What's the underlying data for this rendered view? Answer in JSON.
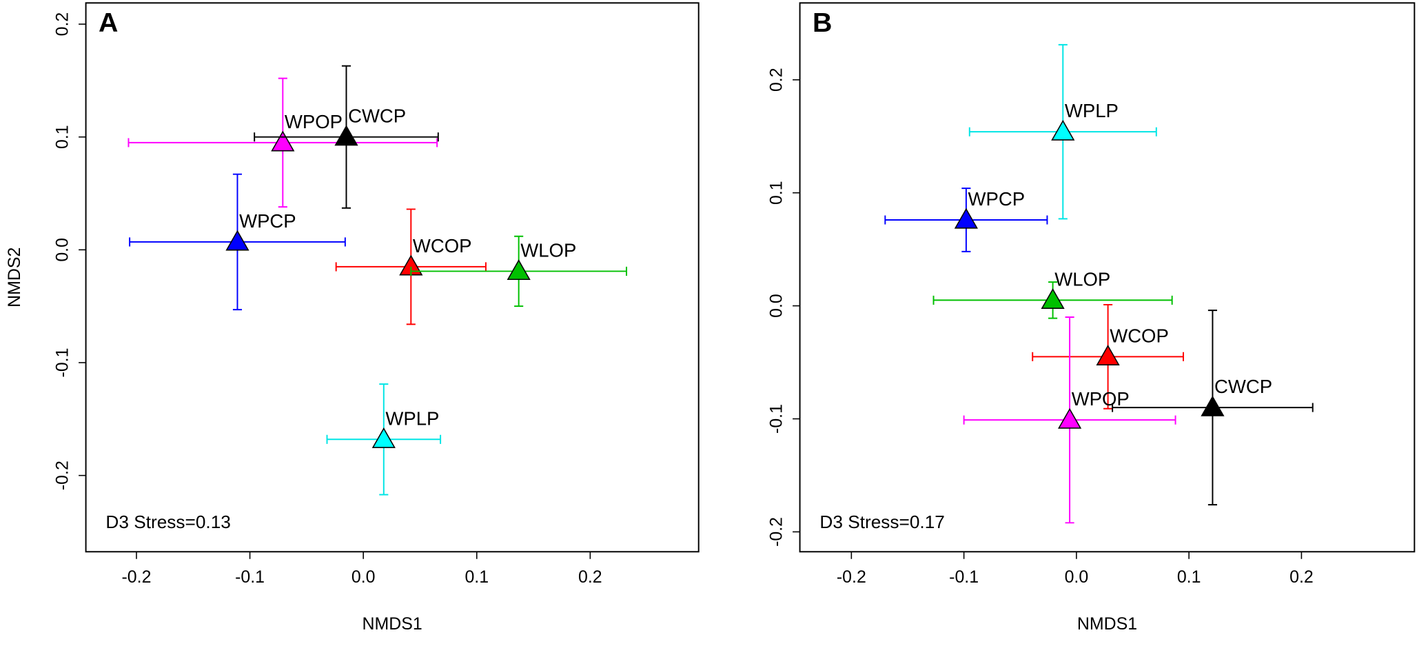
{
  "chart_data": [
    {
      "type": "scatter",
      "panel_label": "A",
      "annotation": "D3 Stress=0.13",
      "xlabel": "NMDS1",
      "ylabel": "NMDS2",
      "xlim": [
        -0.2446,
        0.2956
      ],
      "ylim": [
        -0.2676,
        0.2188
      ],
      "xticks": [
        -0.2,
        -0.1,
        {
          "value": 0,
          "label": "0.0"
        },
        0.1,
        0.2
      ],
      "yticks": [
        -0.2,
        -0.1,
        {
          "value": 0,
          "label": "0.0"
        },
        0.1,
        0.2
      ],
      "series": [
        {
          "name": "WPOP",
          "color": "#ff00ff",
          "x": [
            -0.071
          ],
          "values": [
            0.095
          ],
          "x_err": [
            0.136
          ],
          "y_err": [
            0.057
          ]
        },
        {
          "name": "CWCP",
          "color": "#000000",
          "x": [
            -0.015
          ],
          "values": [
            0.1
          ],
          "x_err": [
            0.081
          ],
          "y_err": [
            0.063
          ]
        },
        {
          "name": "WPCP",
          "color": "#0000ff",
          "x": [
            -0.111
          ],
          "values": [
            0.007
          ],
          "x_err": [
            0.095
          ],
          "y_err": [
            0.06
          ]
        },
        {
          "name": "WCOP",
          "color": "#ff0000",
          "x": [
            0.042
          ],
          "values": [
            -0.015
          ],
          "x_err": [
            0.066
          ],
          "y_err": [
            0.051
          ]
        },
        {
          "name": "WLOP",
          "color": "#00c000",
          "x": [
            0.137
          ],
          "values": [
            -0.019
          ],
          "x_err": [
            0.095
          ],
          "y_err": [
            0.031
          ]
        },
        {
          "name": "WPLP",
          "color": "#00ffff",
          "x": [
            0.018
          ],
          "values": [
            -0.168
          ],
          "x_err": [
            0.05
          ],
          "y_err": [
            0.049
          ]
        }
      ]
    },
    {
      "type": "scatter",
      "panel_label": "B",
      "annotation": "D3 Stress=0.17",
      "xlabel": "NMDS1",
      "xlim": [
        -0.2458,
        0.3004
      ],
      "ylim": [
        -0.2176,
        0.268
      ],
      "xticks": [
        -0.2,
        -0.1,
        {
          "value": 0,
          "label": "0.0"
        },
        0.1,
        0.2
      ],
      "yticks": [
        -0.2,
        -0.1,
        {
          "value": 0,
          "label": "0.0"
        },
        0.1,
        0.2
      ],
      "series": [
        {
          "name": "WPLP",
          "color": "#00ffff",
          "x": [
            -0.012
          ],
          "values": [
            0.154
          ],
          "x_err": [
            0.083
          ],
          "y_err": [
            0.077
          ]
        },
        {
          "name": "WPCP",
          "color": "#0000ff",
          "x": [
            -0.098
          ],
          "values": [
            0.076
          ],
          "x_err": [
            0.072
          ],
          "y_err": [
            0.028
          ]
        },
        {
          "name": "WLOP",
          "color": "#00c000",
          "x": [
            -0.021
          ],
          "values": [
            0.005
          ],
          "x_err": [
            0.106
          ],
          "y_err": [
            0.016
          ]
        },
        {
          "name": "WCOP",
          "color": "#ff0000",
          "x": [
            0.028
          ],
          "values": [
            -0.045
          ],
          "x_err": [
            0.067
          ],
          "y_err": [
            0.046
          ]
        },
        {
          "name": "WPOP",
          "color": "#ff00ff",
          "x": [
            -0.006
          ],
          "values": [
            -0.101
          ],
          "x_err": [
            0.094
          ],
          "y_err": [
            0.091
          ]
        },
        {
          "name": "CWCP",
          "color": "#000000",
          "x": [
            0.121
          ],
          "values": [
            -0.09
          ],
          "x_err": [
            0.089
          ],
          "y_err": [
            0.086
          ]
        }
      ]
    }
  ]
}
